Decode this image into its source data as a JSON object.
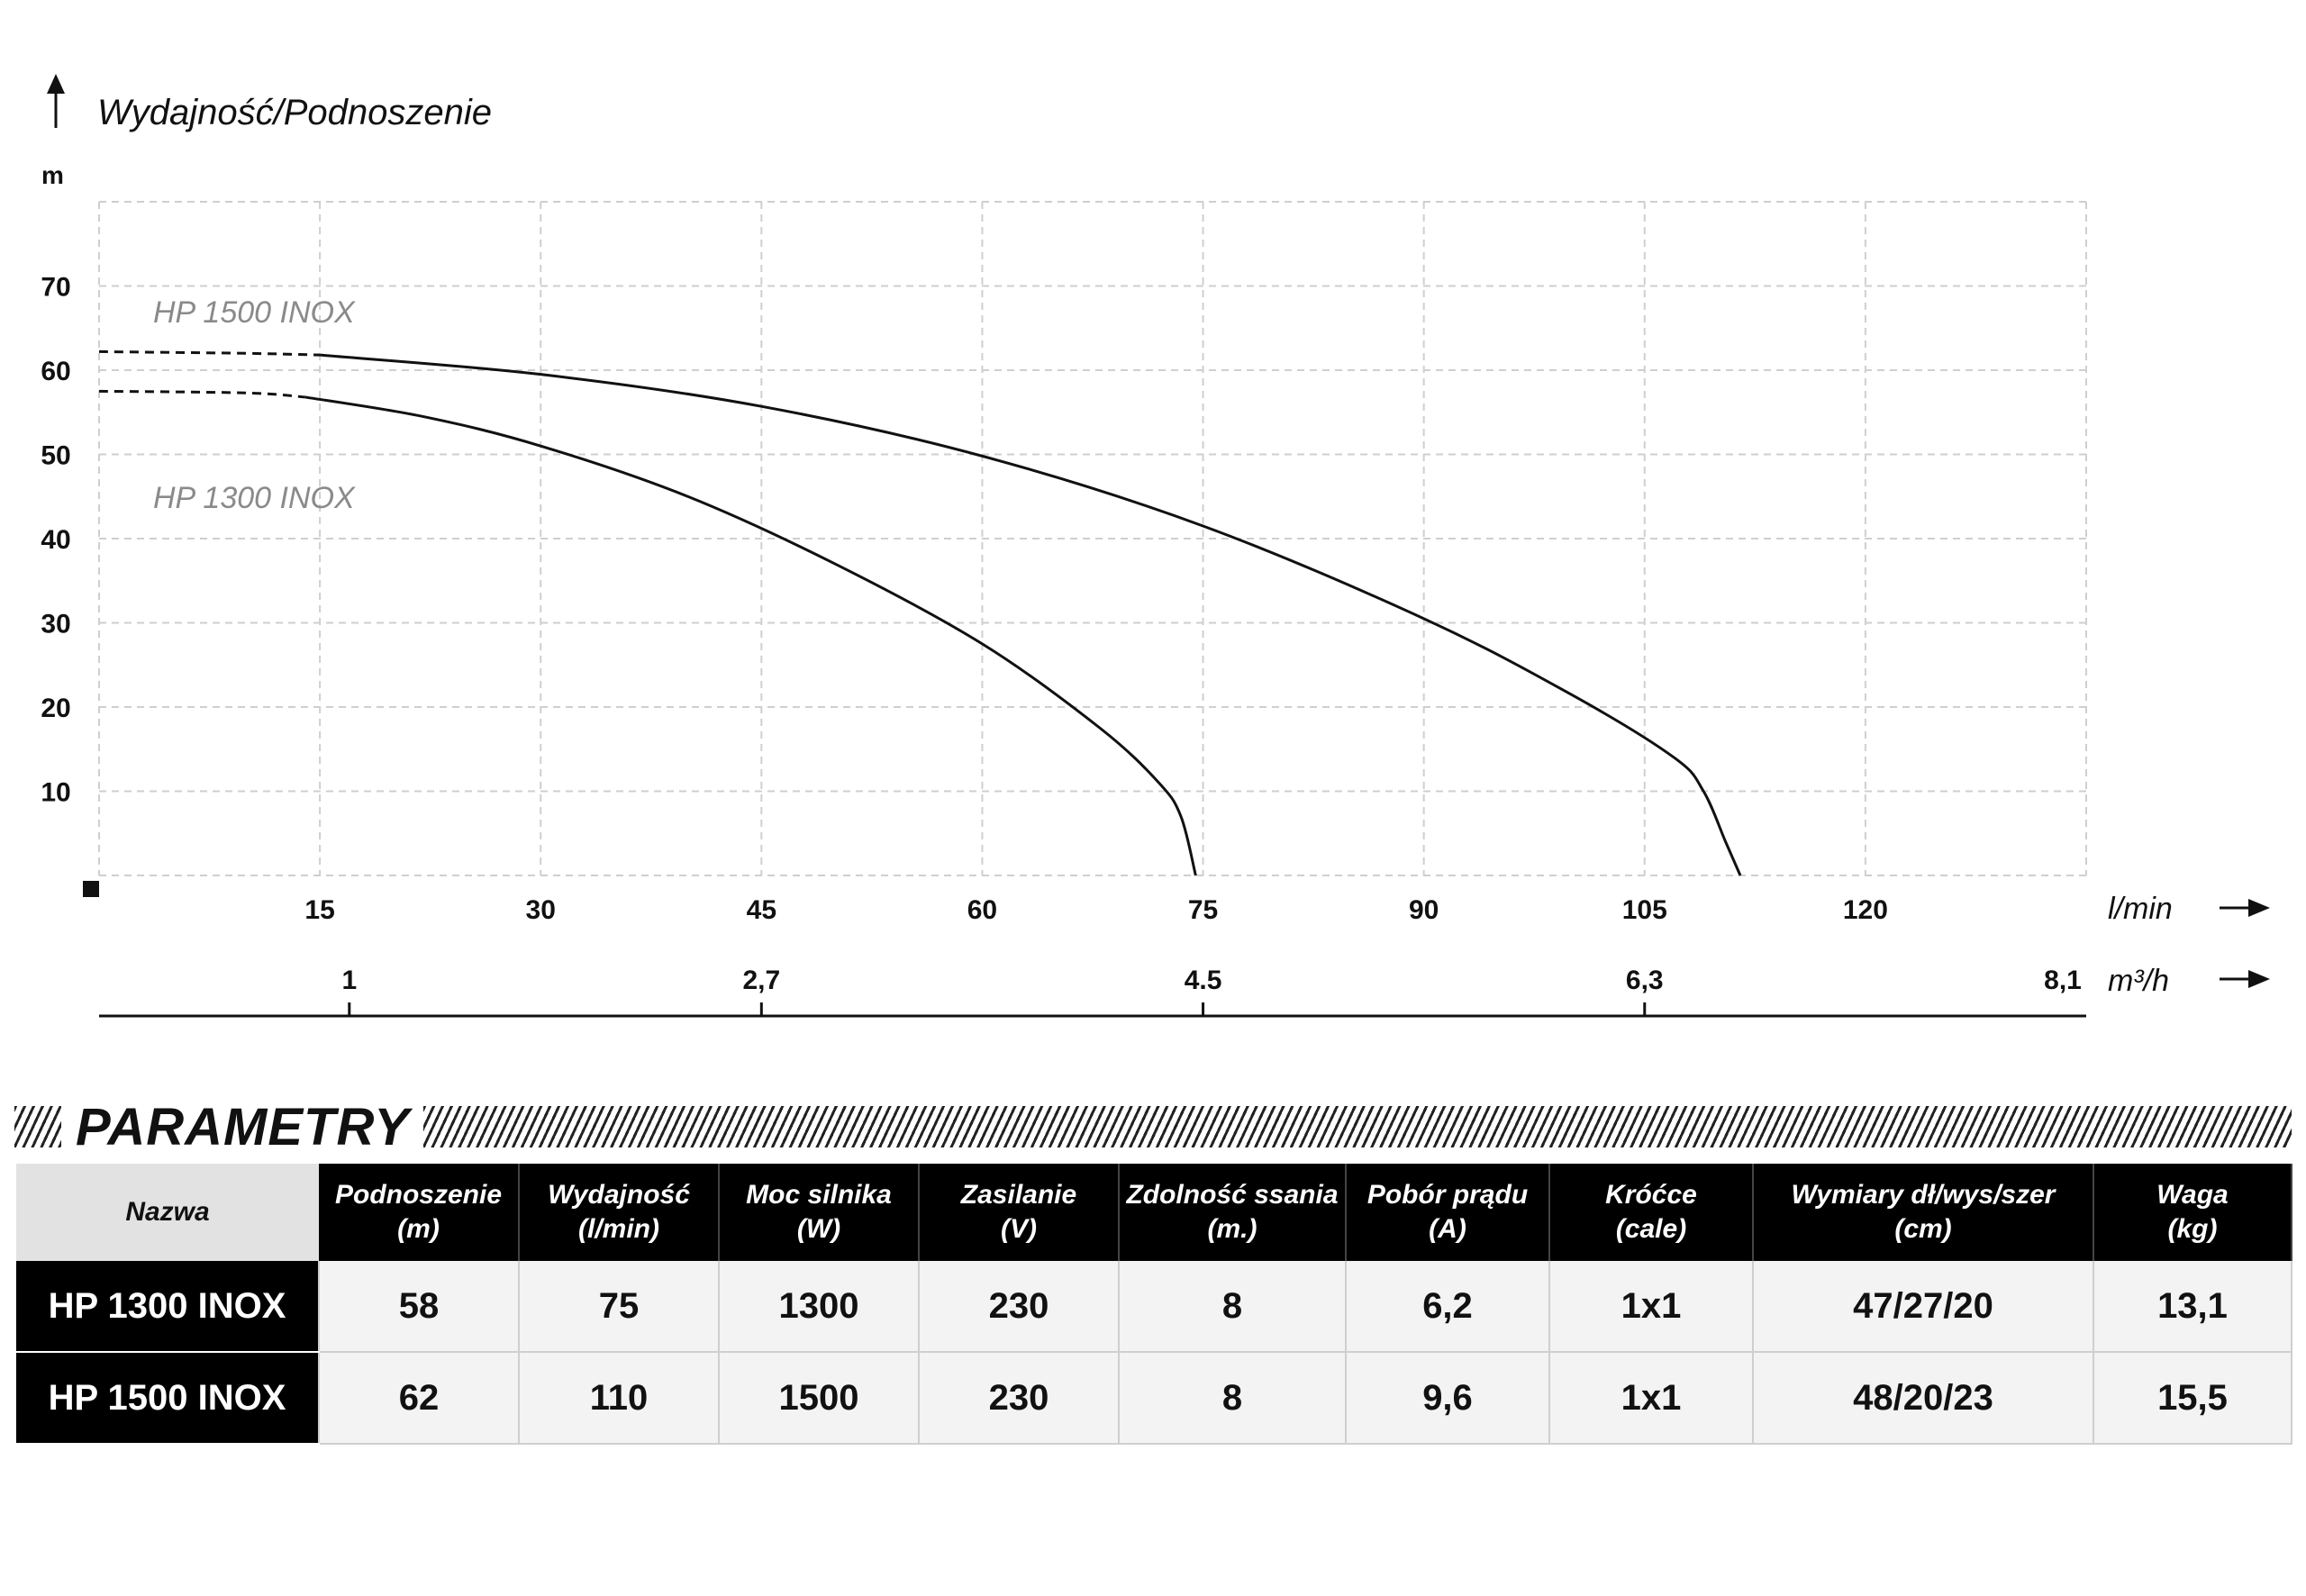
{
  "chart_data": {
    "type": "line",
    "ylabel": "Wydajność/Podnoszenie",
    "yunit": "m",
    "yticks": [
      10,
      20,
      30,
      40,
      50,
      60,
      70
    ],
    "ylim": [
      0,
      80
    ],
    "x_primary": {
      "unit": "l/min",
      "ticks": [
        "15",
        "30",
        "45",
        "60",
        "75",
        "90",
        "105",
        "120"
      ],
      "range": [
        0,
        135
      ]
    },
    "x_secondary": {
      "unit": "m³/h",
      "ticks": [
        {
          "label": "1",
          "at_lmin": 17
        },
        {
          "label": "2,7",
          "at_lmin": 45
        },
        {
          "label": "4.5",
          "at_lmin": 75
        },
        {
          "label": "6,3",
          "at_lmin": 105
        },
        {
          "label": "8,1",
          "at_lmin": 135
        }
      ]
    },
    "grid": true,
    "series": [
      {
        "name": "HP 1500 INOX",
        "dashed_to_x": 15,
        "points": [
          [
            0,
            62.2
          ],
          [
            10,
            62
          ],
          [
            15,
            61.8
          ],
          [
            30,
            59.5
          ],
          [
            45,
            55.7
          ],
          [
            60,
            49.8
          ],
          [
            75,
            41.5
          ],
          [
            90,
            30.5
          ],
          [
            100,
            21.5
          ],
          [
            107,
            14
          ],
          [
            109,
            10
          ],
          [
            110.5,
            4
          ],
          [
            111.5,
            0
          ]
        ]
      },
      {
        "name": "HP 1300 INOX",
        "dashed_to_x": 14,
        "points": [
          [
            0,
            57.5
          ],
          [
            10,
            57.3
          ],
          [
            14,
            56.8
          ],
          [
            22,
            54.5
          ],
          [
            30,
            51
          ],
          [
            40,
            45
          ],
          [
            50,
            37
          ],
          [
            60,
            27.5
          ],
          [
            68,
            17.5
          ],
          [
            72,
            11
          ],
          [
            73.5,
            7
          ],
          [
            74.5,
            0
          ]
        ]
      }
    ]
  },
  "params": {
    "title": "PARAMETRY",
    "headers": [
      {
        "line1": "Nazwa",
        "line2": ""
      },
      {
        "line1": "Podnoszenie",
        "line2": "(m)"
      },
      {
        "line1": "Wydajność",
        "line2": "(l/min)"
      },
      {
        "line1": "Moc silnika",
        "line2": "(W)"
      },
      {
        "line1": "Zasilanie",
        "line2": "(V)"
      },
      {
        "line1": "Zdolność ssania",
        "line2": "(m.)"
      },
      {
        "line1": "Pobór prądu",
        "line2": "(A)"
      },
      {
        "line1": "Króćce",
        "line2": "(cale)"
      },
      {
        "line1": "Wymiary dł/wys/szer",
        "line2": "(cm)"
      },
      {
        "line1": "Waga",
        "line2": "(kg)"
      }
    ],
    "rows": [
      [
        "HP 1300 INOX",
        "58",
        "75",
        "1300",
        "230",
        "8",
        "6,2",
        "1x1",
        "47/27/20",
        "13,1"
      ],
      [
        "HP 1500 INOX",
        "62",
        "110",
        "1500",
        "230",
        "8",
        "9,6",
        "1x1",
        "48/20/23",
        "15,5"
      ]
    ]
  }
}
